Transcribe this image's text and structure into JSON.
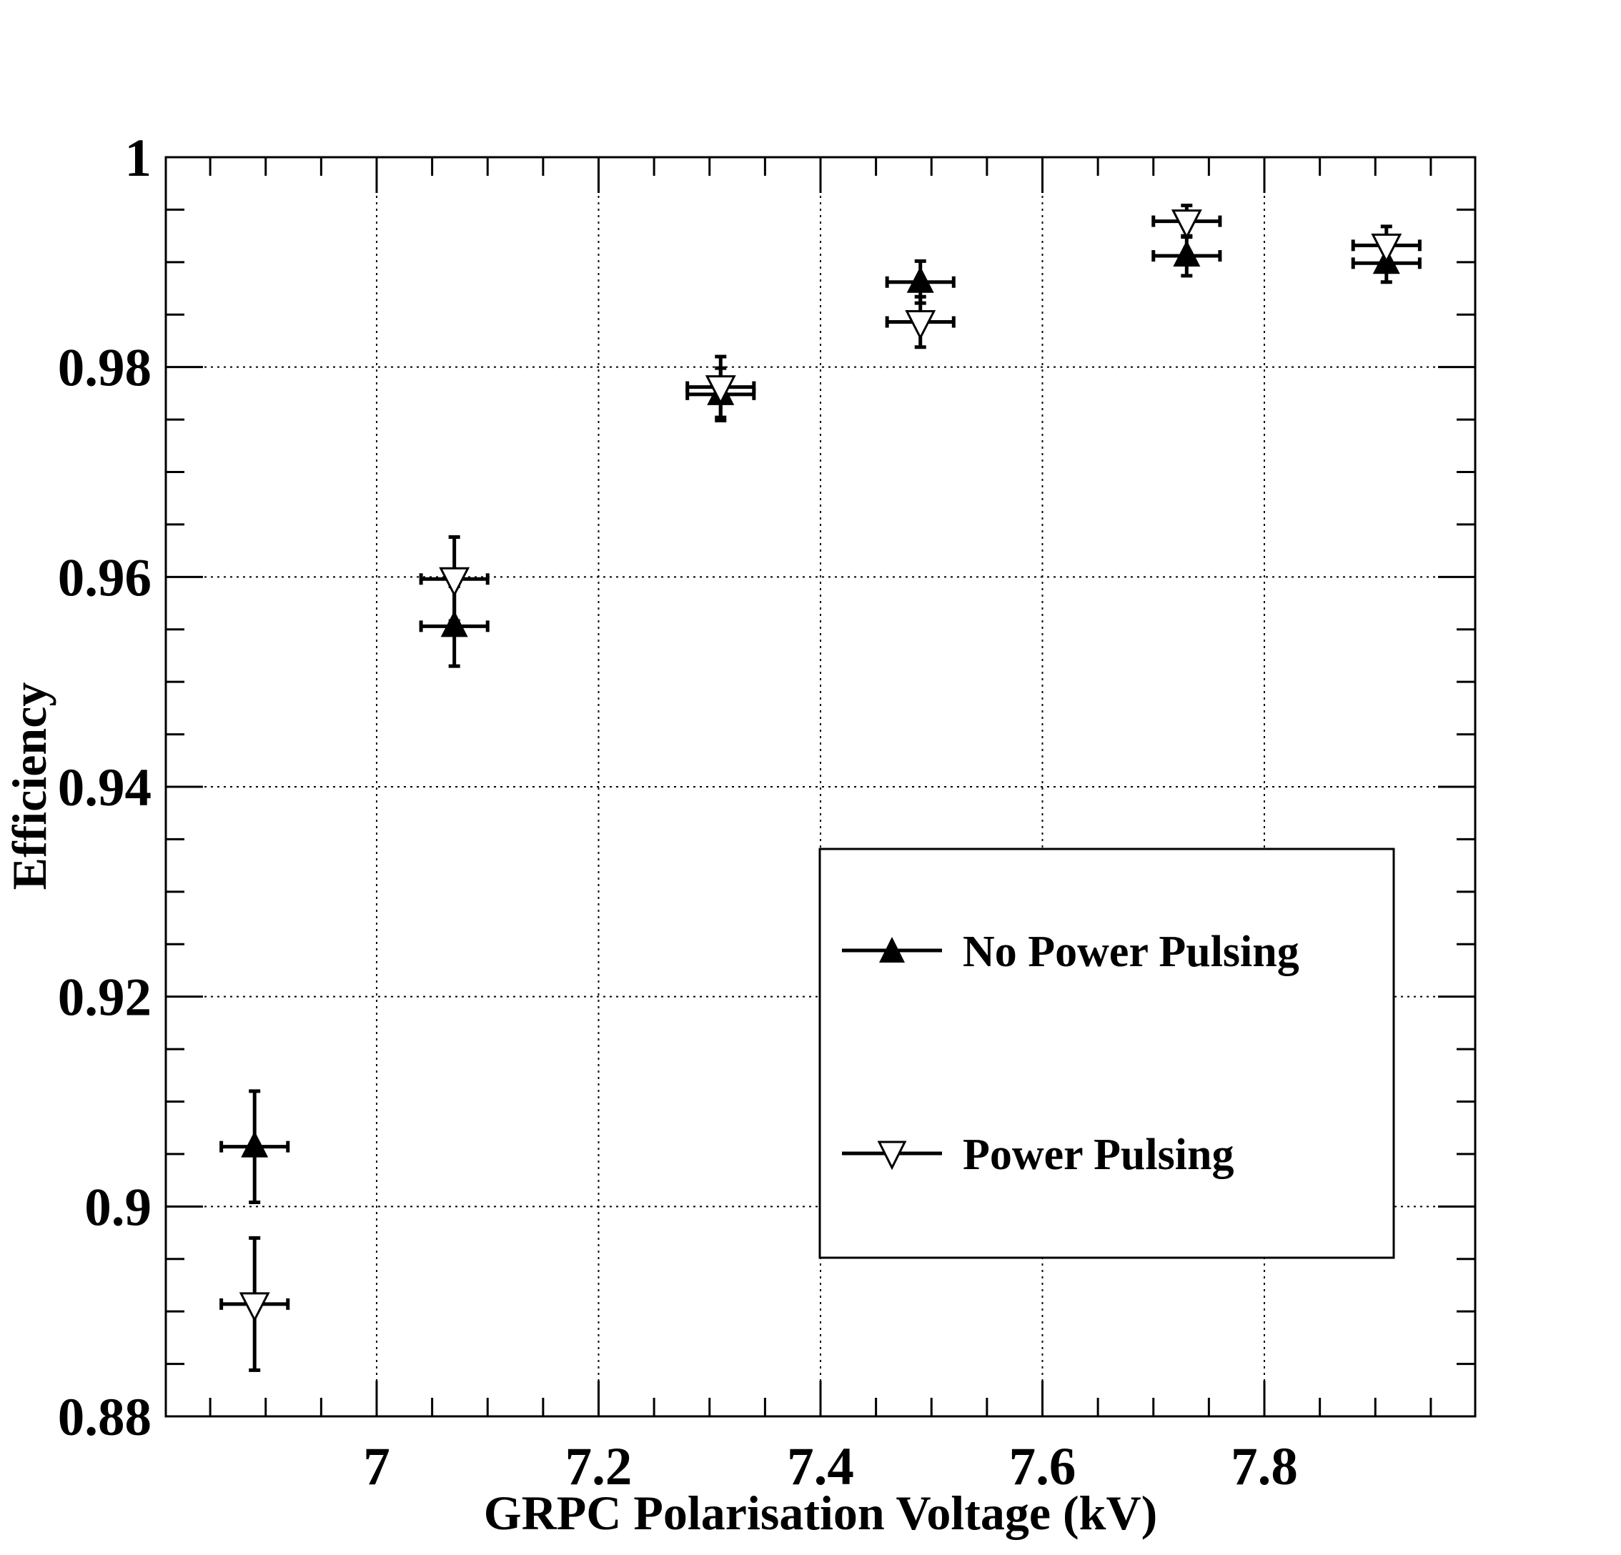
{
  "chart_data": {
    "type": "scatter",
    "title": "",
    "xlabel": "GRPC Polarisation Voltage (kV)",
    "ylabel": "Efficiency",
    "xlim": [
      6.81,
      7.99
    ],
    "ylim": [
      0.88,
      1.0
    ],
    "grid": true,
    "legend_placement": "center-right",
    "x_ticks": [
      {
        "value": 7.0,
        "label": "7"
      },
      {
        "value": 7.2,
        "label": "7.2"
      },
      {
        "value": 7.4,
        "label": "7.4"
      },
      {
        "value": 7.6,
        "label": "7.6"
      },
      {
        "value": 7.8,
        "label": "7.8"
      }
    ],
    "y_ticks": [
      {
        "value": 0.88,
        "label": "0.88"
      },
      {
        "value": 0.9,
        "label": "0.9"
      },
      {
        "value": 0.92,
        "label": "0.92"
      },
      {
        "value": 0.94,
        "label": "0.94"
      },
      {
        "value": 0.96,
        "label": "0.96"
      },
      {
        "value": 0.98,
        "label": "0.98"
      },
      {
        "value": 1.0,
        "label": "1"
      }
    ],
    "series": [
      {
        "name": "No Power Pulsing",
        "marker": "triangle-up-filled",
        "points": [
          {
            "x": 6.89,
            "y": 0.9057,
            "xerr": 0.03,
            "yerr": 0.0053
          },
          {
            "x": 7.07,
            "y": 0.9553,
            "xerr": 0.03,
            "yerr": 0.0038
          },
          {
            "x": 7.31,
            "y": 0.9774,
            "xerr": 0.03,
            "yerr": 0.0025
          },
          {
            "x": 7.49,
            "y": 0.9881,
            "xerr": 0.03,
            "yerr": 0.002
          },
          {
            "x": 7.73,
            "y": 0.9906,
            "xerr": 0.03,
            "yerr": 0.0019
          },
          {
            "x": 7.91,
            "y": 0.9899,
            "xerr": 0.03,
            "yerr": 0.0018
          }
        ]
      },
      {
        "name": "Power Pulsing",
        "marker": "triangle-down-open",
        "points": [
          {
            "x": 6.89,
            "y": 0.8907,
            "xerr": 0.03,
            "yerr": 0.0063
          },
          {
            "x": 7.07,
            "y": 0.9598,
            "xerr": 0.03,
            "yerr": 0.004
          },
          {
            "x": 7.31,
            "y": 0.9781,
            "xerr": 0.03,
            "yerr": 0.0029
          },
          {
            "x": 7.49,
            "y": 0.9843,
            "xerr": 0.03,
            "yerr": 0.0024
          },
          {
            "x": 7.73,
            "y": 0.9939,
            "xerr": 0.03,
            "yerr": 0.0015
          },
          {
            "x": 7.91,
            "y": 0.9916,
            "xerr": 0.03,
            "yerr": 0.0018
          }
        ]
      }
    ]
  }
}
